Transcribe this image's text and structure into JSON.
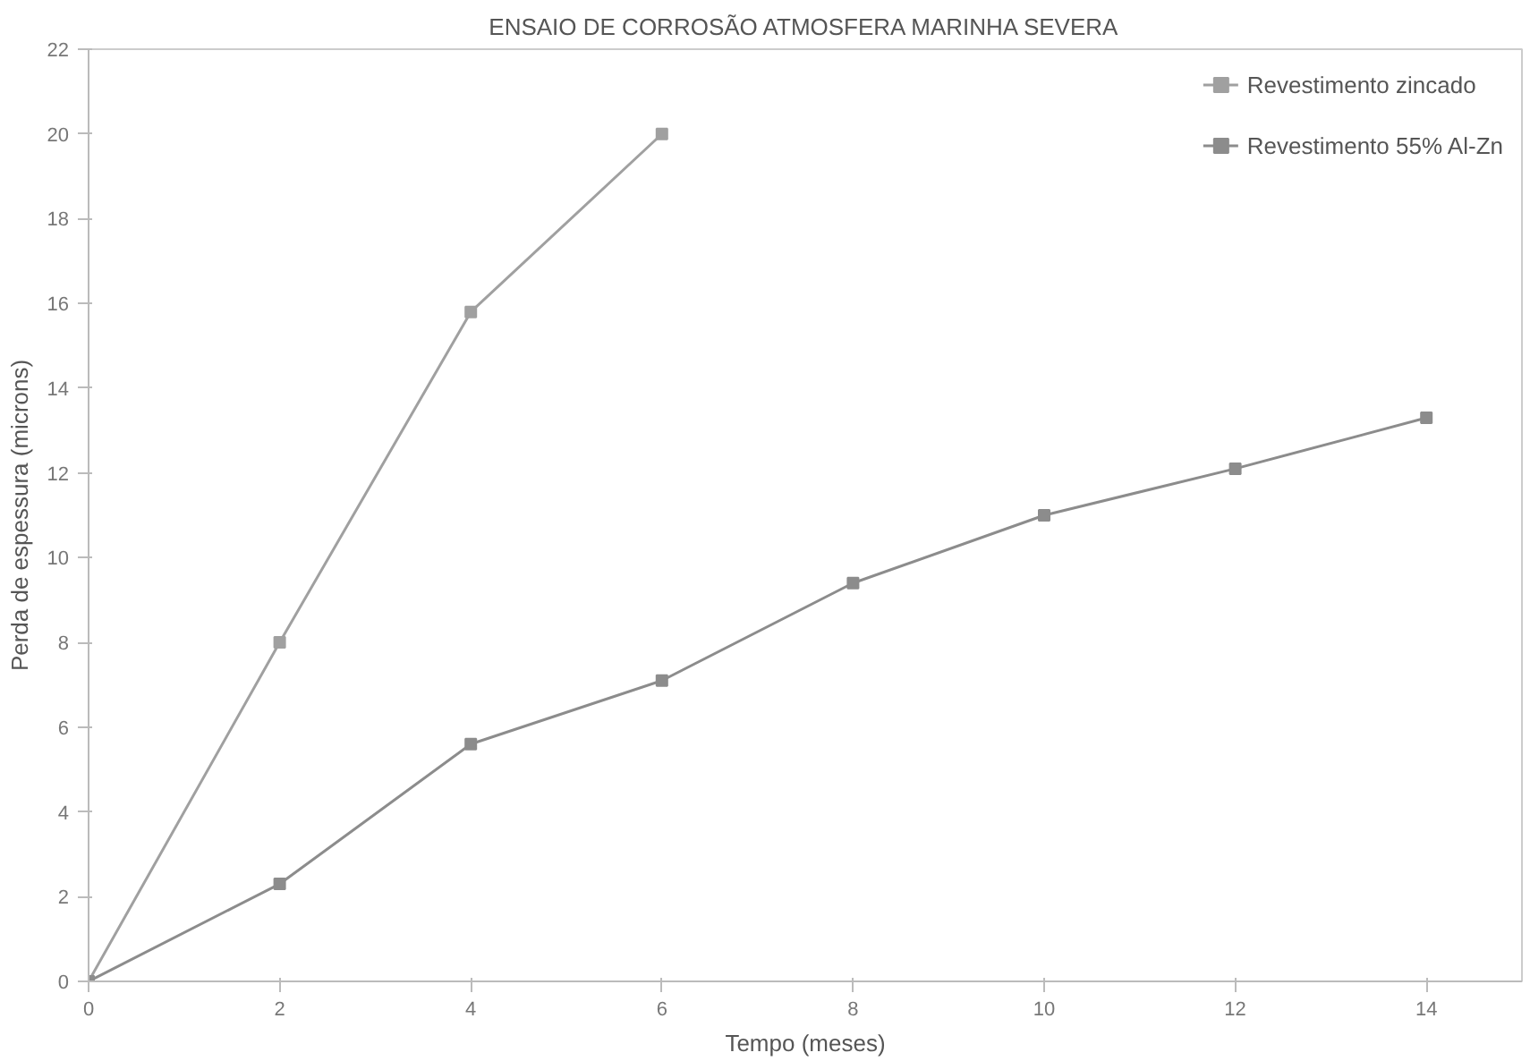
{
  "chart_data": {
    "type": "line",
    "title": "ENSAIO DE CORROSÃO ATMOSFERA MARINHA SEVERA",
    "xlabel": "Tempo (meses)",
    "ylabel": "Perda de espessura (microns)",
    "xlim": [
      0,
      15
    ],
    "xticks": [
      0,
      2,
      4,
      6,
      8,
      10,
      12,
      14
    ],
    "ylim": [
      0,
      22
    ],
    "yticks": [
      0,
      2,
      4,
      6,
      8,
      10,
      12,
      14,
      16,
      18,
      20,
      22
    ],
    "grid": false,
    "legend": "top right",
    "marker": "square",
    "series": [
      {
        "name": "Revestimento zincado",
        "color": "#a0a0a0",
        "x": [
          0,
          2,
          4,
          6
        ],
        "values": [
          0,
          8,
          15.8,
          20
        ]
      },
      {
        "name": "Revestimento 55% Al-Zn",
        "color": "#8c8c8c",
        "x": [
          0,
          2,
          4,
          6,
          8,
          10,
          12,
          14
        ],
        "values": [
          0,
          2.3,
          5.6,
          7.1,
          9.4,
          11.0,
          12.1,
          13.3
        ]
      }
    ]
  }
}
